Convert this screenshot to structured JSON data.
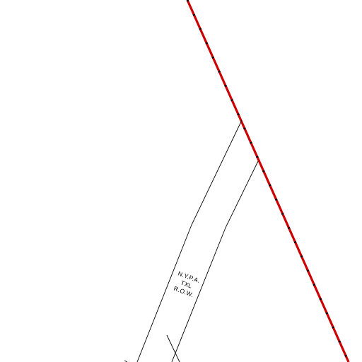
{
  "map": {
    "background_color": "#ffffff",
    "boundary_line": {
      "color": "#cc0000",
      "dash_color": "#000000",
      "style": "red-black dashed"
    },
    "row_corridor": {
      "line_color": "#000000",
      "label_lines": [
        "N.Y.P.A.",
        "TXL",
        "R.O.W."
      ]
    }
  }
}
